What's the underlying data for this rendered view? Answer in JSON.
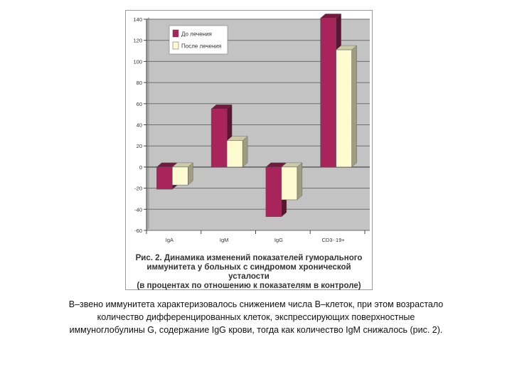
{
  "chart_data": {
    "type": "bar",
    "categories": [
      "IgA",
      "IgM",
      "IgG",
      "CD3- 19+"
    ],
    "series": [
      {
        "name": "До лечения",
        "values": [
          -21,
          55,
          -47,
          141
        ],
        "color": "#a8245a"
      },
      {
        "name": "После лечения",
        "values": [
          -17,
          25,
          -31,
          111
        ],
        "color": "#fffbd0"
      }
    ],
    "ylim": [
      -60,
      140
    ],
    "yticks": [
      140,
      120,
      100,
      80,
      60,
      40,
      20,
      0,
      -20,
      -40,
      -60
    ],
    "ytick_labels": [
      "140",
      "120",
      "100",
      "80",
      "60",
      "40",
      "20",
      "0",
      "-20",
      "-40",
      "-60"
    ],
    "grid": true,
    "legend_position": "top-left",
    "plot_background": "#c3c3c3"
  },
  "figure_caption": [
    "Рис. 2. Динамика изменений показателей гуморального",
    "иммунитета у больных с синдромом хронической усталости",
    "(в процентах по отношению к показателям в контроле)"
  ],
  "body_text": [
    "B–звено иммунитета характеризовалось снижением числа B–клеток, при этом возрастало",
    "количество дифференцированных клеток, экспрессирующих поверхностные",
    "иммуноглобулины G, содержание IgG крови, тогда как количество IgM снижалось (рис. 2)."
  ]
}
